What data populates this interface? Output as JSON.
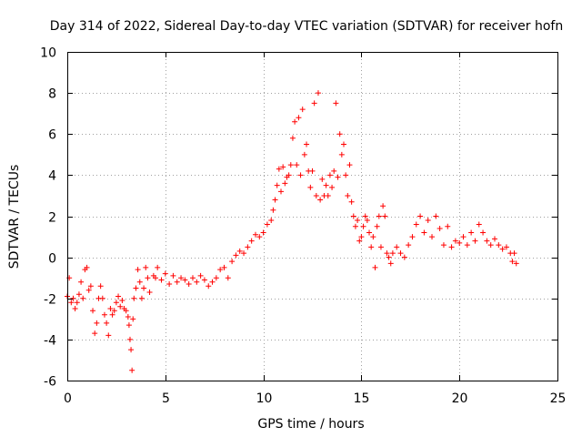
{
  "chart_data": {
    "type": "scatter",
    "title": "Day 314 of 2022, Sidereal Day-to-day VTEC variation (SDTVAR) for receiver hofn",
    "xlabel": "GPS time / hours",
    "ylabel": "SDTVAR / TECUs",
    "xlim": [
      0,
      25
    ],
    "ylim": [
      -6,
      10
    ],
    "xticks": [
      0,
      5,
      10,
      15,
      20,
      25
    ],
    "yticks": [
      -6,
      -4,
      -2,
      0,
      2,
      4,
      6,
      8,
      10
    ],
    "xtick_labels": [
      "0",
      "5",
      "10",
      "15",
      "20",
      "25"
    ],
    "ytick_labels": [
      "-6",
      "-4",
      "-2",
      "0",
      "2",
      "4",
      "6",
      "8",
      "10"
    ],
    "grid": true,
    "marker": "plus",
    "series": [
      {
        "name": "hofn",
        "color": "#ff0000",
        "points": [
          [
            0.0,
            -1.9
          ],
          [
            0.1,
            -1.0
          ],
          [
            0.2,
            -2.2
          ],
          [
            0.3,
            -2.0
          ],
          [
            0.4,
            -2.5
          ],
          [
            0.5,
            -2.2
          ],
          [
            0.6,
            -1.8
          ],
          [
            0.7,
            -1.2
          ],
          [
            0.8,
            -2.0
          ],
          [
            0.9,
            -0.6
          ],
          [
            1.0,
            -0.5
          ],
          [
            1.1,
            -1.6
          ],
          [
            1.2,
            -1.4
          ],
          [
            1.3,
            -2.6
          ],
          [
            1.4,
            -3.7
          ],
          [
            1.5,
            -3.2
          ],
          [
            1.6,
            -2.0
          ],
          [
            1.7,
            -1.4
          ],
          [
            1.8,
            -2.0
          ],
          [
            1.9,
            -2.8
          ],
          [
            2.0,
            -3.2
          ],
          [
            2.1,
            -3.8
          ],
          [
            2.2,
            -2.5
          ],
          [
            2.3,
            -2.8
          ],
          [
            2.4,
            -2.6
          ],
          [
            2.5,
            -2.2
          ],
          [
            2.6,
            -1.9
          ],
          [
            2.7,
            -2.4
          ],
          [
            2.8,
            -2.1
          ],
          [
            2.9,
            -2.5
          ],
          [
            3.0,
            -2.6
          ],
          [
            3.1,
            -2.9
          ],
          [
            3.15,
            -3.3
          ],
          [
            3.2,
            -4.0
          ],
          [
            3.25,
            -4.5
          ],
          [
            3.3,
            -5.5
          ],
          [
            3.35,
            -3.0
          ],
          [
            3.4,
            -2.0
          ],
          [
            3.5,
            -1.5
          ],
          [
            3.6,
            -0.6
          ],
          [
            3.7,
            -1.2
          ],
          [
            3.8,
            -2.0
          ],
          [
            3.9,
            -1.5
          ],
          [
            4.0,
            -0.5
          ],
          [
            4.1,
            -1.0
          ],
          [
            4.2,
            -1.7
          ],
          [
            4.4,
            -0.9
          ],
          [
            4.5,
            -1.0
          ],
          [
            4.6,
            -0.5
          ],
          [
            4.8,
            -1.1
          ],
          [
            5.0,
            -0.8
          ],
          [
            5.2,
            -1.3
          ],
          [
            5.4,
            -0.9
          ],
          [
            5.6,
            -1.2
          ],
          [
            5.8,
            -1.0
          ],
          [
            6.0,
            -1.1
          ],
          [
            6.2,
            -1.3
          ],
          [
            6.4,
            -1.0
          ],
          [
            6.6,
            -1.2
          ],
          [
            6.8,
            -0.9
          ],
          [
            7.0,
            -1.1
          ],
          [
            7.2,
            -1.4
          ],
          [
            7.4,
            -1.2
          ],
          [
            7.6,
            -1.0
          ],
          [
            7.8,
            -0.6
          ],
          [
            8.0,
            -0.5
          ],
          [
            8.2,
            -1.0
          ],
          [
            8.4,
            -0.2
          ],
          [
            8.6,
            0.1
          ],
          [
            8.8,
            0.3
          ],
          [
            9.0,
            0.2
          ],
          [
            9.2,
            0.5
          ],
          [
            9.4,
            0.8
          ],
          [
            9.6,
            1.1
          ],
          [
            9.8,
            1.0
          ],
          [
            10.0,
            1.2
          ],
          [
            10.2,
            1.6
          ],
          [
            10.4,
            1.8
          ],
          [
            10.5,
            2.3
          ],
          [
            10.6,
            2.8
          ],
          [
            10.7,
            3.5
          ],
          [
            10.8,
            4.3
          ],
          [
            10.9,
            3.2
          ],
          [
            11.0,
            4.4
          ],
          [
            11.1,
            3.6
          ],
          [
            11.2,
            3.9
          ],
          [
            11.3,
            4.0
          ],
          [
            11.4,
            4.5
          ],
          [
            11.5,
            5.8
          ],
          [
            11.6,
            6.6
          ],
          [
            11.7,
            4.5
          ],
          [
            11.8,
            6.8
          ],
          [
            11.9,
            4.0
          ],
          [
            12.0,
            7.2
          ],
          [
            12.1,
            5.0
          ],
          [
            12.2,
            5.5
          ],
          [
            12.3,
            4.2
          ],
          [
            12.4,
            3.4
          ],
          [
            12.5,
            4.2
          ],
          [
            12.6,
            7.5
          ],
          [
            12.7,
            3.0
          ],
          [
            12.8,
            8.0
          ],
          [
            12.9,
            2.8
          ],
          [
            13.0,
            3.8
          ],
          [
            13.1,
            3.0
          ],
          [
            13.2,
            3.5
          ],
          [
            13.3,
            3.0
          ],
          [
            13.4,
            4.0
          ],
          [
            13.5,
            3.4
          ],
          [
            13.6,
            4.2
          ],
          [
            13.7,
            7.5
          ],
          [
            13.8,
            3.9
          ],
          [
            13.9,
            6.0
          ],
          [
            14.0,
            5.0
          ],
          [
            14.1,
            5.5
          ],
          [
            14.2,
            4.0
          ],
          [
            14.3,
            3.0
          ],
          [
            14.4,
            4.5
          ],
          [
            14.5,
            2.7
          ],
          [
            14.6,
            2.0
          ],
          [
            14.7,
            1.5
          ],
          [
            14.8,
            1.8
          ],
          [
            14.9,
            0.8
          ],
          [
            15.0,
            1.0
          ],
          [
            15.1,
            1.5
          ],
          [
            15.2,
            2.0
          ],
          [
            15.3,
            1.8
          ],
          [
            15.4,
            1.2
          ],
          [
            15.5,
            0.5
          ],
          [
            15.6,
            1.0
          ],
          [
            15.7,
            -0.5
          ],
          [
            15.8,
            1.5
          ],
          [
            15.9,
            2.0
          ],
          [
            16.0,
            0.5
          ],
          [
            16.1,
            2.5
          ],
          [
            16.2,
            2.0
          ],
          [
            16.3,
            0.2
          ],
          [
            16.4,
            0.0
          ],
          [
            16.5,
            -0.3
          ],
          [
            16.6,
            0.2
          ],
          [
            16.8,
            0.5
          ],
          [
            17.0,
            0.2
          ],
          [
            17.2,
            0.0
          ],
          [
            17.4,
            0.6
          ],
          [
            17.6,
            1.0
          ],
          [
            17.8,
            1.6
          ],
          [
            18.0,
            2.0
          ],
          [
            18.2,
            1.2
          ],
          [
            18.4,
            1.8
          ],
          [
            18.6,
            1.0
          ],
          [
            18.8,
            2.0
          ],
          [
            19.0,
            1.4
          ],
          [
            19.2,
            0.6
          ],
          [
            19.4,
            1.5
          ],
          [
            19.6,
            0.5
          ],
          [
            19.8,
            0.8
          ],
          [
            20.0,
            0.7
          ],
          [
            20.2,
            1.0
          ],
          [
            20.4,
            0.6
          ],
          [
            20.6,
            1.2
          ],
          [
            20.8,
            0.8
          ],
          [
            21.0,
            1.6
          ],
          [
            21.2,
            1.2
          ],
          [
            21.4,
            0.8
          ],
          [
            21.6,
            0.6
          ],
          [
            21.8,
            0.9
          ],
          [
            22.0,
            0.6
          ],
          [
            22.2,
            0.4
          ],
          [
            22.4,
            0.5
          ],
          [
            22.6,
            0.2
          ],
          [
            22.7,
            -0.2
          ],
          [
            22.8,
            0.2
          ],
          [
            22.9,
            -0.3
          ]
        ]
      }
    ]
  }
}
